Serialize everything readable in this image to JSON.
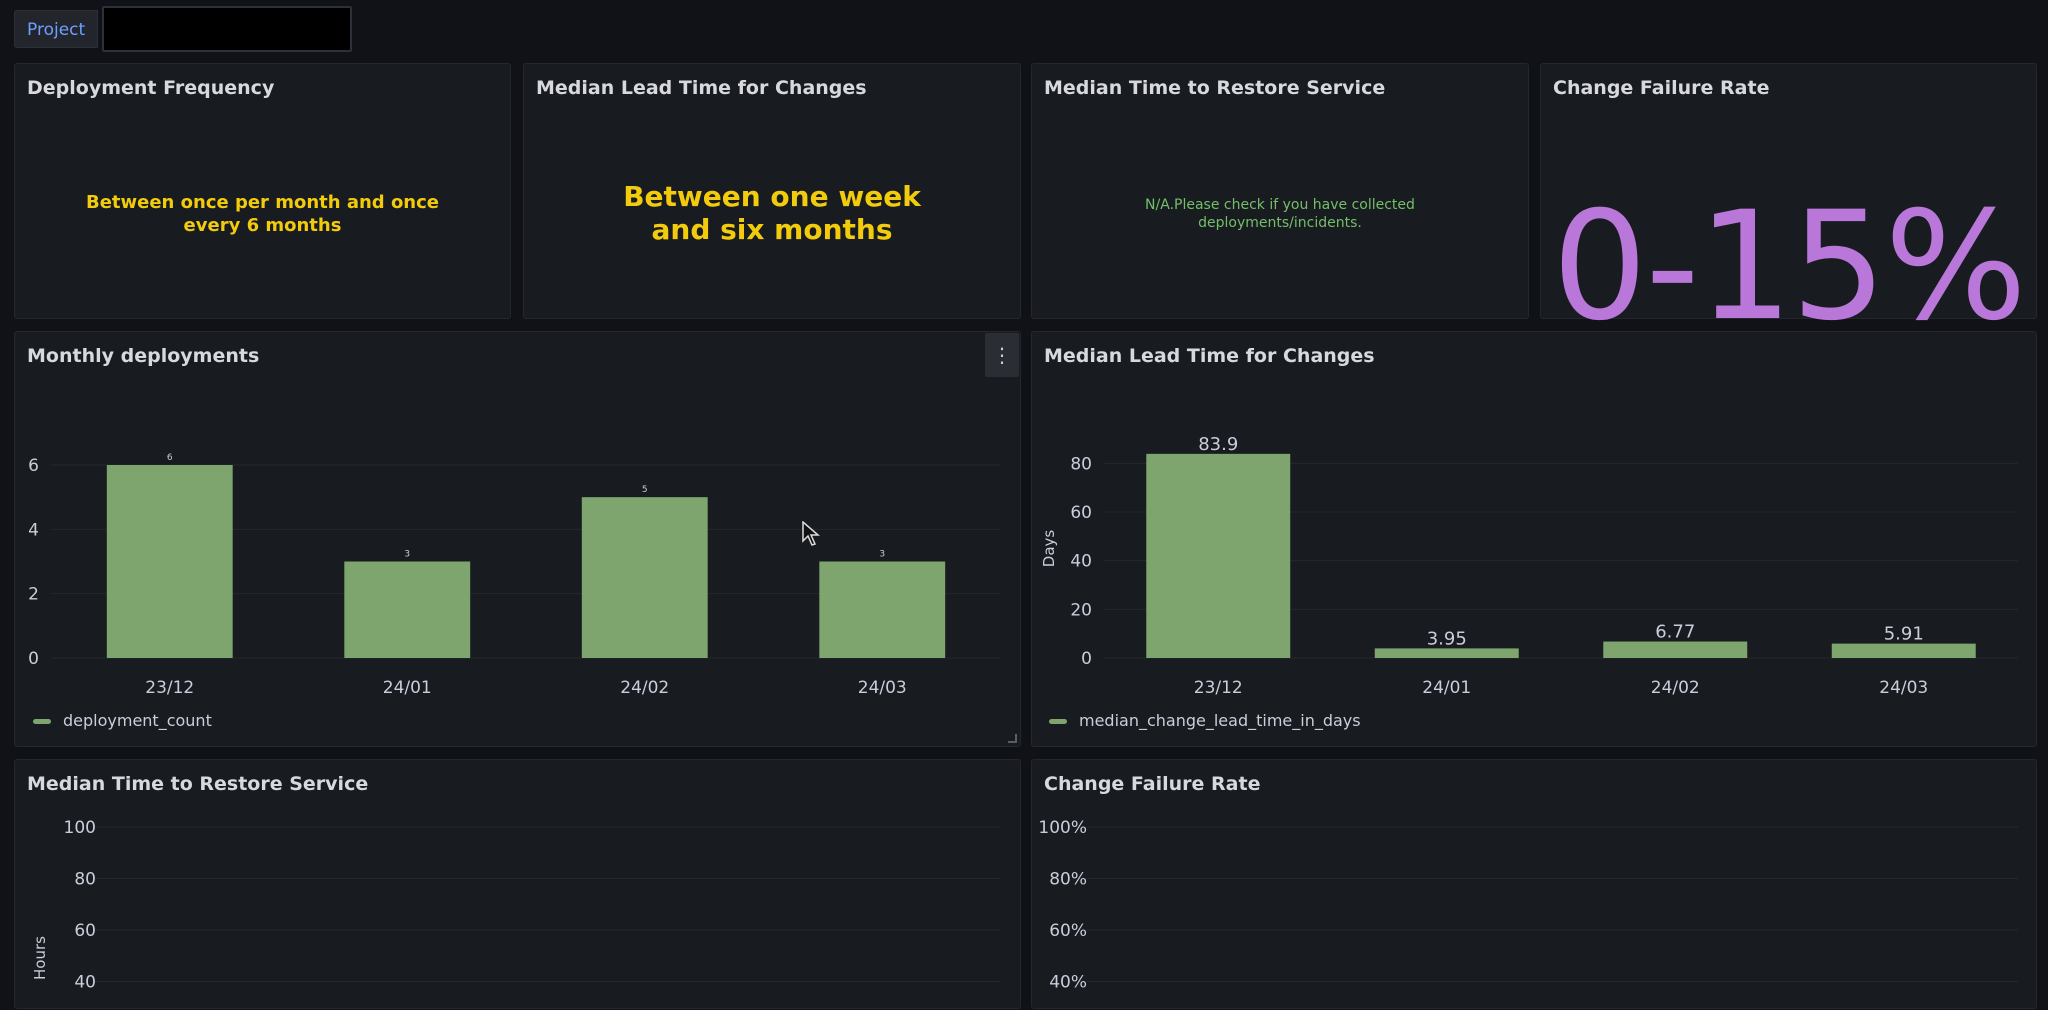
{
  "variables": {
    "project_label": "Project",
    "project_value": ""
  },
  "stats": {
    "deployment_frequency": {
      "title": "Deployment Frequency",
      "value": "Between once per month and once every 6 months",
      "color": "#f2cc0c"
    },
    "median_lead_time": {
      "title": "Median Lead Time for Changes",
      "value": "Between one week and six months",
      "color": "#f2cc0c"
    },
    "median_restore": {
      "title": "Median Time to Restore Service",
      "value": "N/A.Please check if you have collected deployments/incidents.",
      "color": "#73bf69"
    },
    "change_failure": {
      "title": "Change Failure Rate",
      "value": "0-15%",
      "color": "#b877d9"
    }
  },
  "charts": {
    "monthly_deployments": {
      "title": "Monthly deployments",
      "menu_icon": "kebab-menu-icon"
    },
    "median_lead_time": {
      "title": "Median Lead Time for Changes"
    },
    "median_restore": {
      "title": "Median Time to Restore Service"
    },
    "change_failure": {
      "title": "Change Failure Rate"
    }
  },
  "chart_data": [
    {
      "type": "bar",
      "title": "Monthly deployments",
      "categories": [
        "23/12",
        "24/01",
        "24/02",
        "24/03"
      ],
      "series": [
        {
          "name": "deployment_count",
          "values": [
            6,
            3,
            5,
            3
          ]
        }
      ],
      "data_labels": [
        "6",
        "3",
        "5",
        "3"
      ],
      "ylim": [
        0,
        6
      ],
      "yticks": [
        "0",
        "2",
        "4",
        "6"
      ],
      "ylabel": "",
      "color": "#7ea56e",
      "legend": "bottom-left"
    },
    {
      "type": "bar",
      "title": "Median Lead Time for Changes",
      "categories": [
        "23/12",
        "24/01",
        "24/02",
        "24/03"
      ],
      "series": [
        {
          "name": "median_change_lead_time_in_days",
          "values": [
            83.9,
            3.95,
            6.77,
            5.91
          ]
        }
      ],
      "data_labels": [
        "83.9",
        "3.95",
        "6.77",
        "5.91"
      ],
      "ylim": [
        0,
        90
      ],
      "yticks": [
        "0",
        "20",
        "40",
        "60",
        "80"
      ],
      "ylabel": "Days",
      "color": "#7ea56e",
      "legend": "bottom-left"
    },
    {
      "type": "bar",
      "title": "Median Time to Restore Service",
      "categories": [],
      "series": [],
      "yticks": [
        "100",
        "80",
        "60",
        "40"
      ],
      "ylabel": "Hours"
    },
    {
      "type": "bar",
      "title": "Change Failure Rate",
      "categories": [],
      "series": [],
      "yticks": [
        "100%",
        "80%",
        "60%",
        "40%"
      ],
      "ylabel": ""
    }
  ]
}
